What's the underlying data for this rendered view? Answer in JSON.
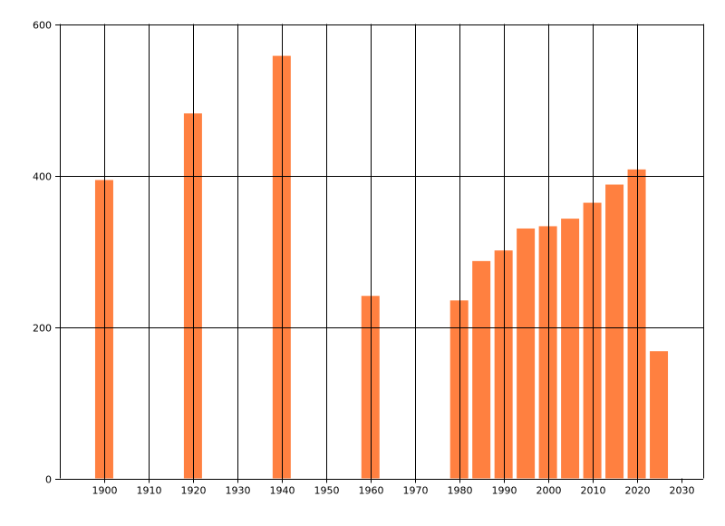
{
  "chart_data": {
    "type": "bar",
    "title": "",
    "xlabel": "",
    "ylabel": "",
    "x": [
      1900,
      1920,
      1940,
      1960,
      1980,
      1985,
      1990,
      1995,
      2000,
      2005,
      2010,
      2015,
      2020,
      2025
    ],
    "values": [
      394,
      482,
      558,
      241,
      235,
      287,
      301,
      330,
      333,
      343,
      364,
      388,
      408,
      168
    ],
    "xlim": [
      1890,
      2035
    ],
    "ylim": [
      0,
      600
    ],
    "x_ticks": [
      1900,
      1910,
      1920,
      1930,
      1940,
      1950,
      1960,
      1970,
      1980,
      1990,
      2000,
      2010,
      2020,
      2030
    ],
    "y_ticks": [
      0,
      200,
      400,
      600
    ],
    "grid": true,
    "bar_color": "#ff8040",
    "legend": "none"
  }
}
